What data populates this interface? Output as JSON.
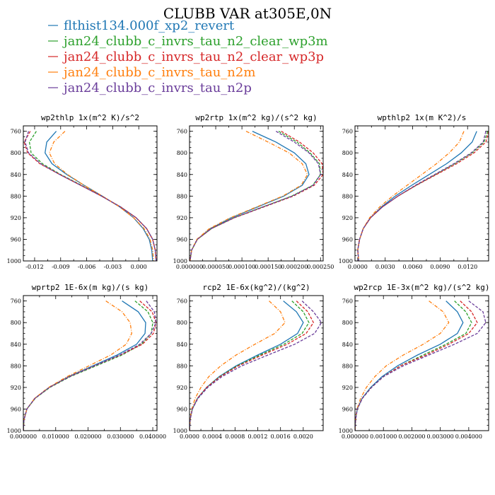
{
  "title": "CLUBB VAR at305E,0N",
  "legend": [
    {
      "label": "flthist134.000f_xp2_revert",
      "color": "#1f77b4",
      "dash": "solid"
    },
    {
      "label": "jan24_clubb_c_invrs_tau_n2_clear_wp3m",
      "color": "#2ca02c",
      "dash": "dashed"
    },
    {
      "label": "jan24_clubb_c_invrs_tau_n2_clear_wp3p",
      "color": "#d62728",
      "dash": "dashed"
    },
    {
      "label": "jan24_clubb_c_invrs_tau_n2m",
      "color": "#ff7f0e",
      "dash": "dashdot"
    },
    {
      "label": "jan24_clubb_c_invrs_tau_n2p",
      "color": "#6a3d9a",
      "dash": "dashed"
    }
  ],
  "chart_data": [
    {
      "type": "line",
      "title": "wp2thlp  1x(m^2 K)/s^2",
      "ylim": [
        1000,
        750
      ],
      "ylabel_ticks": [
        "760",
        "800",
        "840",
        "880",
        "920",
        "960",
        "1000"
      ],
      "xlim": [
        -0.0133,
        0.0021
      ],
      "xticks": [
        -0.012,
        -0.009,
        -0.006,
        -0.003,
        0.0
      ],
      "xtick_labels": [
        "-0.012",
        "-0.009",
        "-0.006",
        "-0.003",
        "0.000"
      ],
      "y": [
        760,
        780,
        800,
        820,
        840,
        860,
        880,
        900,
        920,
        940,
        960,
        980,
        1000
      ],
      "series": [
        {
          "name": "flthist134.000f_xp2_revert",
          "values": [
            -0.0095,
            -0.0106,
            -0.0108,
            -0.01,
            -0.0083,
            -0.0063,
            -0.0042,
            -0.0022,
            -0.0006,
            0.0005,
            0.0012,
            0.0015,
            0.0016
          ]
        },
        {
          "name": "jan24_clubb_c_invrs_tau_n2_clear_wp3m",
          "values": [
            -0.0118,
            -0.0126,
            -0.0124,
            -0.0111,
            -0.009,
            -0.0066,
            -0.0043,
            -0.0021,
            -0.0003,
            0.0009,
            0.0016,
            0.0019,
            0.002
          ]
        },
        {
          "name": "jan24_clubb_c_invrs_tau_n2_clear_wp3p",
          "values": [
            -0.0125,
            -0.0132,
            -0.0128,
            -0.0114,
            -0.0091,
            -0.0067,
            -0.0043,
            -0.0021,
            -0.0003,
            0.0009,
            0.0016,
            0.0019,
            0.002
          ]
        },
        {
          "name": "jan24_clubb_c_invrs_tau_n2m",
          "values": [
            -0.0085,
            -0.0098,
            -0.0103,
            -0.0097,
            -0.0082,
            -0.0063,
            -0.0042,
            -0.0022,
            -0.0006,
            0.0006,
            0.0013,
            0.0016,
            0.0017
          ]
        },
        {
          "name": "jan24_clubb_c_invrs_tau_n2p",
          "values": [
            -0.0127,
            -0.0131,
            -0.0127,
            -0.0113,
            -0.0091,
            -0.0067,
            -0.0043,
            -0.0021,
            -0.0003,
            0.0009,
            0.0016,
            0.0019,
            0.002
          ]
        }
      ]
    },
    {
      "type": "line",
      "title": "wp2rtp  1x(m^2 kg)/(s^2 kg)",
      "ylim": [
        1000,
        750
      ],
      "ylabel_ticks": [
        "760",
        "800",
        "840",
        "880",
        "920",
        "960",
        "1000"
      ],
      "xlim": [
        0.0,
        0.000255
      ],
      "xticks": [
        0.0,
        5e-05,
        0.0001,
        0.00015,
        0.0002,
        0.00025
      ],
      "xtick_labels": [
        "0.000000",
        "0.000050",
        "0.000100",
        "0.000150",
        "0.000200",
        "0.000250"
      ],
      "y": [
        760,
        780,
        800,
        820,
        840,
        860,
        880,
        900,
        920,
        940,
        960,
        980,
        1000
      ],
      "series": [
        {
          "name": "flthist134.000f_xp2_revert",
          "values": [
            0.00012,
            0.000165,
            0.0002,
            0.000222,
            0.000228,
            0.000215,
            0.00018,
            0.00013,
            8e-05,
            4e-05,
            1.5e-05,
            4e-06,
            1e-06
          ]
        },
        {
          "name": "jan24_clubb_c_invrs_tau_n2_clear_wp3m",
          "values": [
            0.00017,
            0.000205,
            0.00023,
            0.000248,
            0.00025,
            0.000235,
            0.000195,
            0.00014,
            8.5e-05,
            4.2e-05,
            1.5e-05,
            4e-06,
            1e-06
          ]
        },
        {
          "name": "jan24_clubb_c_invrs_tau_n2_clear_wp3p",
          "values": [
            0.000175,
            0.00021,
            0.000236,
            0.000253,
            0.000255,
            0.000238,
            0.000198,
            0.000142,
            8.6e-05,
            4.2e-05,
            1.5e-05,
            4e-06,
            1e-06
          ]
        },
        {
          "name": "jan24_clubb_c_invrs_tau_n2m",
          "values": [
            0.000108,
            0.00015,
            0.00019,
            0.000215,
            0.000225,
            0.000213,
            0.000178,
            0.000128,
            7.8e-05,
            3.8e-05,
            1.4e-05,
            4e-06,
            1e-06
          ]
        },
        {
          "name": "jan24_clubb_c_invrs_tau_n2p",
          "values": [
            0.000165,
            0.0002,
            0.000228,
            0.000246,
            0.00025,
            0.000236,
            0.000196,
            0.00014,
            8.5e-05,
            4.2e-05,
            1.5e-05,
            4e-06,
            1e-06
          ]
        }
      ]
    },
    {
      "type": "line",
      "title": "wpthlp2  1x(m K^2)/s",
      "ylim": [
        1000,
        750
      ],
      "ylabel_ticks": [
        "760",
        "800",
        "840",
        "880",
        "920",
        "960",
        "1000"
      ],
      "xlim": [
        -0.0003,
        0.0143
      ],
      "xticks": [
        0.0,
        0.003,
        0.006,
        0.009,
        0.012
      ],
      "xtick_labels": [
        "0.0000",
        "0.0030",
        "0.0060",
        "0.0090",
        "0.0120"
      ],
      "y": [
        760,
        780,
        800,
        820,
        840,
        860,
        880,
        900,
        920,
        940,
        960,
        980,
        1000
      ],
      "series": [
        {
          "name": "flthist134.000f_xp2_revert",
          "values": [
            0.013,
            0.0125,
            0.0113,
            0.0097,
            0.0078,
            0.0059,
            0.0041,
            0.0026,
            0.0014,
            0.0006,
            0.0002,
            0.0,
            0.0001
          ]
        },
        {
          "name": "jan24_clubb_c_invrs_tau_n2_clear_wp3m",
          "values": [
            0.0142,
            0.0138,
            0.0125,
            0.0106,
            0.0085,
            0.0064,
            0.0044,
            0.0027,
            0.0014,
            0.0006,
            0.0002,
            0.0,
            0.0001
          ]
        },
        {
          "name": "jan24_clubb_c_invrs_tau_n2_clear_wp3p",
          "values": [
            0.0143,
            0.014,
            0.0127,
            0.0108,
            0.0086,
            0.0064,
            0.0044,
            0.0027,
            0.0014,
            0.0006,
            0.0002,
            0.0,
            0.0001
          ]
        },
        {
          "name": "jan24_clubb_c_invrs_tau_n2m",
          "values": [
            0.0116,
            0.0111,
            0.01,
            0.0086,
            0.007,
            0.0054,
            0.0038,
            0.0024,
            0.0013,
            0.0006,
            0.0002,
            0.0,
            0.0001
          ]
        },
        {
          "name": "jan24_clubb_c_invrs_tau_n2p",
          "values": [
            0.014,
            0.0137,
            0.0124,
            0.0105,
            0.0084,
            0.0063,
            0.0044,
            0.0027,
            0.0014,
            0.0006,
            0.0002,
            0.0,
            0.0001
          ]
        }
      ]
    },
    {
      "type": "line",
      "title": "wprtp2  1E-6x(m kg)/(s kg)",
      "ylim": [
        1000,
        750
      ],
      "ylabel_ticks": [
        "760",
        "800",
        "840",
        "880",
        "920",
        "960",
        "1000"
      ],
      "xlim": [
        0.0,
        0.0413
      ],
      "xticks": [
        0.0,
        0.01,
        0.02,
        0.03,
        0.04
      ],
      "xtick_labels": [
        "0.000000",
        "0.010000",
        "0.020000",
        "0.030000",
        "0.040000"
      ],
      "y": [
        760,
        780,
        800,
        820,
        840,
        860,
        880,
        900,
        920,
        940,
        960,
        980,
        1000
      ],
      "series": [
        {
          "name": "flthist134.000f_xp2_revert",
          "values": [
            0.0305,
            0.0355,
            0.0378,
            0.0376,
            0.035,
            0.029,
            0.0215,
            0.014,
            0.008,
            0.0036,
            0.0011,
            0.0002,
            0.0
          ]
        },
        {
          "name": "jan24_clubb_c_invrs_tau_n2_clear_wp3m",
          "values": [
            0.0345,
            0.0385,
            0.04,
            0.0395,
            0.0365,
            0.0305,
            0.0225,
            0.0145,
            0.0082,
            0.0037,
            0.0011,
            0.0002,
            0.0
          ]
        },
        {
          "name": "jan24_clubb_c_invrs_tau_n2_clear_wp3p",
          "values": [
            0.036,
            0.0398,
            0.041,
            0.0402,
            0.0368,
            0.03,
            0.022,
            0.0142,
            0.008,
            0.0036,
            0.0011,
            0.0002,
            0.0
          ]
        },
        {
          "name": "jan24_clubb_c_invrs_tau_n2m",
          "values": [
            0.0255,
            0.0305,
            0.033,
            0.0335,
            0.0318,
            0.027,
            0.0203,
            0.0135,
            0.0078,
            0.0035,
            0.0011,
            0.0002,
            0.0
          ]
        },
        {
          "name": "jan24_clubb_c_invrs_tau_n2p",
          "values": [
            0.038,
            0.0405,
            0.041,
            0.0395,
            0.036,
            0.0298,
            0.022,
            0.0142,
            0.008,
            0.0036,
            0.0011,
            0.0002,
            0.0
          ]
        }
      ]
    },
    {
      "type": "line",
      "title": "rcp2  1E-6x(kg^2)/(kg^2)",
      "ylim": [
        1000,
        750
      ],
      "ylabel_ticks": [
        "760",
        "800",
        "840",
        "880",
        "920",
        "960",
        "1000"
      ],
      "xlim": [
        0.0,
        0.00235
      ],
      "xticks": [
        0.0,
        0.0004,
        0.0008,
        0.0012,
        0.0016,
        0.002
      ],
      "xtick_labels": [
        "0.0000",
        "0.0004",
        "0.0008",
        "0.0012",
        "0.0016",
        "0.0020"
      ],
      "y": [
        760,
        780,
        800,
        820,
        840,
        860,
        880,
        900,
        920,
        940,
        960,
        980,
        1000
      ],
      "series": [
        {
          "name": "flthist134.000f_xp2_revert",
          "values": [
            0.00165,
            0.00188,
            0.002,
            0.0019,
            0.0016,
            0.0012,
            0.00082,
            0.00052,
            0.0003,
            0.00014,
            5e-05,
            1e-05,
            0.0
          ]
        },
        {
          "name": "jan24_clubb_c_invrs_tau_n2_clear_wp3m",
          "values": [
            0.0018,
            0.002,
            0.0021,
            0.00198,
            0.00166,
            0.00124,
            0.00084,
            0.00053,
            0.0003,
            0.00014,
            5e-05,
            1e-05,
            0.0
          ]
        },
        {
          "name": "jan24_clubb_c_invrs_tau_n2_clear_wp3p",
          "values": [
            0.00188,
            0.00208,
            0.00218,
            0.00205,
            0.00172,
            0.00128,
            0.00086,
            0.00054,
            0.0003,
            0.00014,
            5e-05,
            1e-05,
            0.0
          ]
        },
        {
          "name": "jan24_clubb_c_invrs_tau_n2m",
          "values": [
            0.0014,
            0.0016,
            0.00168,
            0.0015,
            0.00115,
            0.00082,
            0.00055,
            0.00034,
            0.0002,
            0.0001,
            4e-05,
            1e-05,
            0.0
          ]
        },
        {
          "name": "jan24_clubb_c_invrs_tau_n2p",
          "values": [
            0.00198,
            0.00218,
            0.00232,
            0.0022,
            0.00185,
            0.00138,
            0.00092,
            0.00057,
            0.00032,
            0.00015,
            5e-05,
            1e-05,
            0.0
          ]
        }
      ]
    },
    {
      "type": "line",
      "title": "wp2rcp  1E-3x(m^2 kg)/(s^2 kg)",
      "ylim": [
        1000,
        750
      ],
      "ylabel_ticks": [
        "760",
        "800",
        "840",
        "880",
        "920",
        "960",
        "1000"
      ],
      "xlim": [
        0.0,
        0.0047
      ],
      "xticks": [
        0.0,
        0.001,
        0.002,
        0.003,
        0.004
      ],
      "xtick_labels": [
        "0.000000",
        "0.001000",
        "0.002000",
        "0.003000",
        "0.004000"
      ],
      "y": [
        760,
        780,
        800,
        820,
        840,
        860,
        880,
        900,
        920,
        940,
        960,
        980,
        1000
      ],
      "series": [
        {
          "name": "flthist134.000f_xp2_revert",
          "values": [
            0.0032,
            0.0036,
            0.0038,
            0.0036,
            0.003,
            0.0022,
            0.0015,
            0.00095,
            0.00055,
            0.00025,
            8e-05,
            2e-05,
            0.0
          ]
        },
        {
          "name": "jan24_clubb_c_invrs_tau_n2_clear_wp3m",
          "values": [
            0.0035,
            0.0039,
            0.0041,
            0.0039,
            0.0032,
            0.0024,
            0.0016,
            0.001,
            0.00057,
            0.00026,
            8e-05,
            2e-05,
            0.0
          ]
        },
        {
          "name": "jan24_clubb_c_invrs_tau_n2_clear_wp3p",
          "values": [
            0.0037,
            0.0041,
            0.0043,
            0.004,
            0.0033,
            0.0025,
            0.0016,
            0.001,
            0.00058,
            0.00026,
            8e-05,
            2e-05,
            0.0
          ]
        },
        {
          "name": "jan24_clubb_c_invrs_tau_n2m",
          "values": [
            0.0026,
            0.0031,
            0.0033,
            0.003,
            0.0024,
            0.0017,
            0.0011,
            0.0007,
            0.0004,
            0.0002,
            7e-05,
            2e-05,
            0.0
          ]
        },
        {
          "name": "jan24_clubb_c_invrs_tau_n2p",
          "values": [
            0.004,
            0.0045,
            0.0046,
            0.0043,
            0.0035,
            0.0026,
            0.0017,
            0.001,
            0.00058,
            0.00026,
            8e-05,
            2e-05,
            0.0
          ]
        }
      ]
    }
  ]
}
